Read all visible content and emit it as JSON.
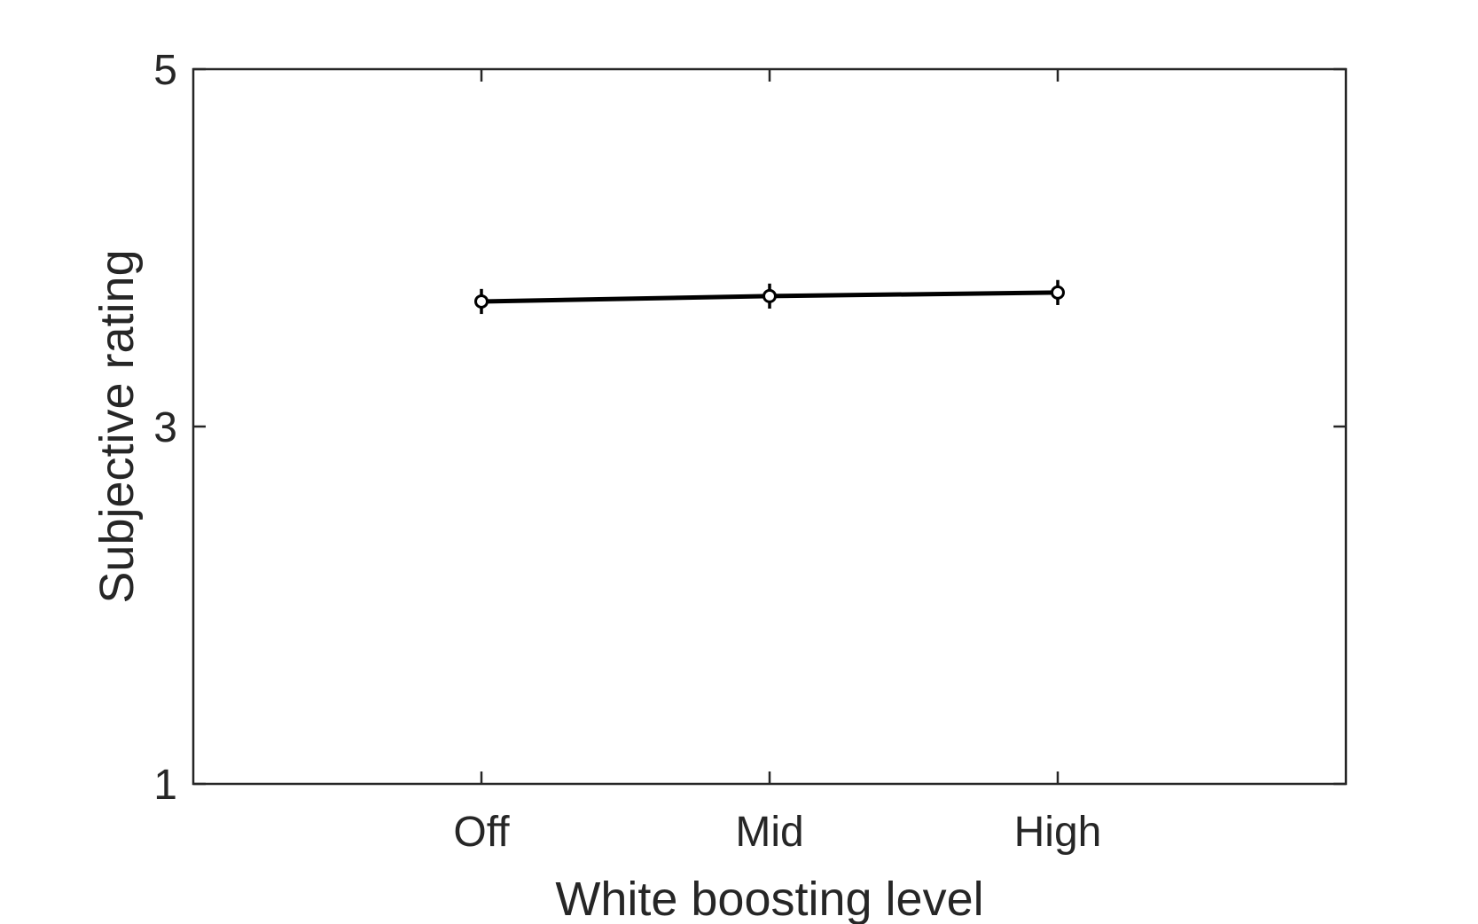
{
  "chart_data": {
    "type": "line",
    "categories": [
      "Off",
      "Mid",
      "High"
    ],
    "x_range": [
      0,
      4
    ],
    "ylim": [
      1,
      5
    ],
    "yticks": [
      1,
      3,
      5
    ],
    "xlabel": "White boosting level",
    "ylabel": "Subjective rating",
    "title": "",
    "grid": false,
    "legend": "none",
    "series": [
      {
        "values": [
          3.7,
          3.73,
          3.75
        ],
        "error": [
          0.07,
          0.07,
          0.07
        ],
        "color": "#000000",
        "marker": "open-circle"
      }
    ]
  }
}
